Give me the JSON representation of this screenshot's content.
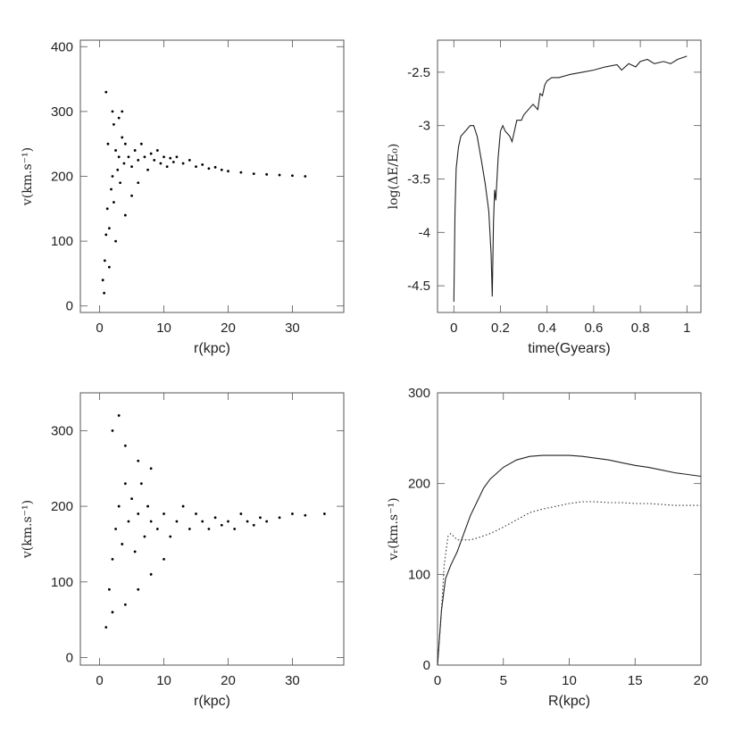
{
  "chart_data": [
    {
      "type": "scatter",
      "xlabel": "r(kpc)",
      "ylabel": "v(km.s⁻¹)",
      "xlim": [
        -3,
        38
      ],
      "ylim": [
        -10,
        410
      ],
      "xticks": [
        0,
        10,
        20,
        30
      ],
      "yticks": [
        0,
        100,
        200,
        300,
        400
      ],
      "points": [
        [
          0.5,
          40
        ],
        [
          0.8,
          70
        ],
        [
          1.0,
          110
        ],
        [
          1.2,
          150
        ],
        [
          1.5,
          120
        ],
        [
          1.8,
          180
        ],
        [
          2.0,
          200
        ],
        [
          2.2,
          160
        ],
        [
          2.5,
          240
        ],
        [
          2.8,
          210
        ],
        [
          3.0,
          230
        ],
        [
          3.2,
          190
        ],
        [
          3.5,
          260
        ],
        [
          3.8,
          220
        ],
        [
          4.0,
          250
        ],
        [
          4.5,
          230
        ],
        [
          5.0,
          215
        ],
        [
          5.5,
          240
        ],
        [
          6.0,
          225
        ],
        [
          6.5,
          250
        ],
        [
          7.0,
          230
        ],
        [
          7.5,
          210
        ],
        [
          8.0,
          235
        ],
        [
          8.5,
          225
        ],
        [
          9.0,
          240
        ],
        [
          9.5,
          220
        ],
        [
          10,
          230
        ],
        [
          10.5,
          215
        ],
        [
          11,
          228
        ],
        [
          11.5,
          222
        ],
        [
          12,
          230
        ],
        [
          13,
          220
        ],
        [
          14,
          225
        ],
        [
          15,
          215
        ],
        [
          16,
          218
        ],
        [
          17,
          212
        ],
        [
          18,
          214
        ],
        [
          19,
          210
        ],
        [
          20,
          208
        ],
        [
          22,
          206
        ],
        [
          24,
          204
        ],
        [
          26,
          203
        ],
        [
          28,
          202
        ],
        [
          30,
          201
        ],
        [
          32,
          200
        ],
        [
          1.0,
          330
        ],
        [
          2.0,
          300
        ],
        [
          3.0,
          290
        ],
        [
          1.5,
          60
        ],
        [
          2.5,
          100
        ],
        [
          0.7,
          20
        ],
        [
          4.0,
          140
        ],
        [
          5.0,
          170
        ],
        [
          6.0,
          190
        ],
        [
          3.5,
          300
        ],
        [
          2.2,
          280
        ],
        [
          1.3,
          250
        ]
      ]
    },
    {
      "type": "line",
      "xlabel": "time(Gyears)",
      "ylabel": "log(ΔE/E₀)",
      "xlim": [
        -0.07,
        1.06
      ],
      "ylim": [
        -4.75,
        -2.2
      ],
      "xticks": [
        0,
        0.2,
        0.4,
        0.6,
        0.8,
        1
      ],
      "xtick_labels": [
        "0",
        "0.2",
        "0.4",
        "0.6",
        "0.8",
        "1"
      ],
      "yticks": [
        -4.5,
        -4,
        -3.5,
        -3,
        -2.5
      ],
      "ytick_labels": [
        "-4.5",
        "-4",
        "-3.5",
        "-3",
        "-2.5"
      ],
      "x": [
        0.0,
        0.005,
        0.01,
        0.02,
        0.03,
        0.05,
        0.07,
        0.085,
        0.1,
        0.12,
        0.135,
        0.15,
        0.16,
        0.165,
        0.17,
        0.175,
        0.18,
        0.19,
        0.2,
        0.21,
        0.22,
        0.24,
        0.25,
        0.27,
        0.29,
        0.3,
        0.32,
        0.34,
        0.36,
        0.37,
        0.38,
        0.39,
        0.4,
        0.42,
        0.45,
        0.5,
        0.55,
        0.6,
        0.65,
        0.7,
        0.72,
        0.75,
        0.78,
        0.8,
        0.83,
        0.86,
        0.9,
        0.93,
        0.96,
        1.0
      ],
      "y": [
        -4.65,
        -3.8,
        -3.4,
        -3.2,
        -3.1,
        -3.05,
        -3.0,
        -3.0,
        -3.1,
        -3.35,
        -3.55,
        -3.8,
        -4.2,
        -4.6,
        -3.9,
        -3.6,
        -3.7,
        -3.3,
        -3.05,
        -3.0,
        -3.05,
        -3.1,
        -3.15,
        -2.95,
        -2.95,
        -2.9,
        -2.85,
        -2.8,
        -2.85,
        -2.7,
        -2.72,
        -2.62,
        -2.58,
        -2.55,
        -2.55,
        -2.52,
        -2.5,
        -2.48,
        -2.45,
        -2.43,
        -2.48,
        -2.42,
        -2.45,
        -2.4,
        -2.38,
        -2.42,
        -2.4,
        -2.42,
        -2.38,
        -2.35
      ]
    },
    {
      "type": "scatter",
      "xlabel": "r(kpc)",
      "ylabel": "v(km.s⁻¹)",
      "xlim": [
        -3,
        38
      ],
      "ylim": [
        -10,
        350
      ],
      "xticks": [
        0,
        10,
        20,
        30
      ],
      "yticks": [
        0,
        100,
        200,
        300
      ],
      "points": [
        [
          1,
          40
        ],
        [
          1.5,
          90
        ],
        [
          2,
          130
        ],
        [
          2.5,
          170
        ],
        [
          3,
          200
        ],
        [
          3.5,
          150
        ],
        [
          4,
          230
        ],
        [
          4.5,
          180
        ],
        [
          5,
          210
        ],
        [
          5.5,
          140
        ],
        [
          6,
          190
        ],
        [
          6.5,
          230
        ],
        [
          7,
          160
        ],
        [
          7.5,
          200
        ],
        [
          8,
          180
        ],
        [
          9,
          170
        ],
        [
          10,
          190
        ],
        [
          11,
          160
        ],
        [
          12,
          180
        ],
        [
          13,
          200
        ],
        [
          14,
          170
        ],
        [
          15,
          190
        ],
        [
          16,
          180
        ],
        [
          17,
          170
        ],
        [
          18,
          185
        ],
        [
          19,
          175
        ],
        [
          20,
          180
        ],
        [
          21,
          170
        ],
        [
          22,
          190
        ],
        [
          23,
          180
        ],
        [
          24,
          175
        ],
        [
          25,
          185
        ],
        [
          26,
          180
        ],
        [
          28,
          185
        ],
        [
          30,
          190
        ],
        [
          32,
          188
        ],
        [
          35,
          190
        ],
        [
          2,
          300
        ],
        [
          3,
          320
        ],
        [
          4,
          280
        ],
        [
          6,
          260
        ],
        [
          8,
          250
        ],
        [
          2,
          60
        ],
        [
          4,
          70
        ],
        [
          6,
          90
        ],
        [
          8,
          110
        ],
        [
          10,
          130
        ]
      ]
    },
    {
      "type": "line",
      "xlabel": "R(kpc)",
      "ylabel": "vᵣ(km.s⁻¹)",
      "xlim": [
        0,
        20
      ],
      "ylim": [
        0,
        300
      ],
      "xticks": [
        0,
        5,
        10,
        15,
        20
      ],
      "yticks": [
        0,
        100,
        200,
        300
      ],
      "series": [
        {
          "style": "solid",
          "x": [
            0,
            0.3,
            0.6,
            1.0,
            1.5,
            2,
            2.5,
            3,
            3.5,
            4,
            5,
            6,
            7,
            8,
            9,
            10,
            11,
            12,
            13,
            14,
            15,
            16,
            17,
            18,
            19,
            20
          ],
          "y": [
            0,
            60,
            95,
            110,
            125,
            145,
            165,
            180,
            195,
            205,
            218,
            226,
            230,
            231,
            231,
            231,
            230,
            228,
            226,
            223,
            220,
            218,
            215,
            212,
            210,
            208
          ]
        },
        {
          "style": "dotted",
          "x": [
            0,
            0.3,
            0.5,
            0.8,
            1.0,
            1.5,
            2,
            2.5,
            3,
            4,
            5,
            6,
            7,
            8,
            9,
            10,
            11,
            12,
            13,
            14,
            15,
            16,
            17,
            18,
            19,
            20
          ],
          "y": [
            0,
            60,
            110,
            142,
            145,
            138,
            138,
            138,
            140,
            145,
            152,
            160,
            168,
            172,
            175,
            178,
            180,
            180,
            179,
            179,
            178,
            178,
            177,
            176,
            176,
            176
          ]
        }
      ]
    }
  ]
}
